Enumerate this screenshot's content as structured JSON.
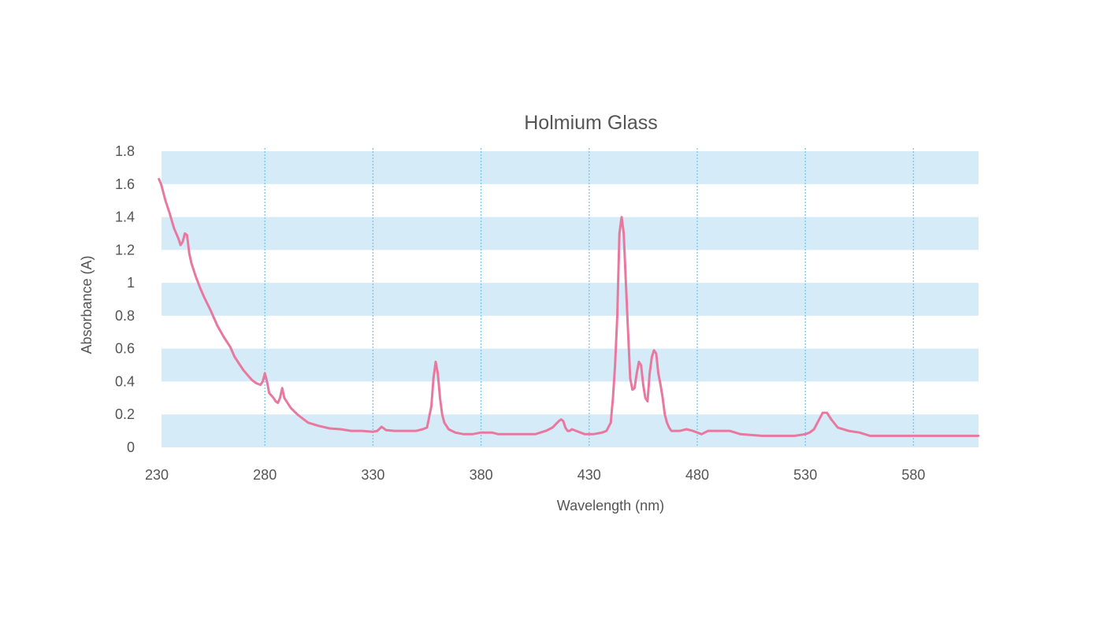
{
  "chart_data": {
    "type": "line",
    "title": "Holmium Glass",
    "xlabel": "Wavelength (nm)",
    "ylabel": "Absorbance (A)",
    "xlim": [
      230,
      610
    ],
    "ylim": [
      0,
      1.8
    ],
    "x_ticks": [
      "230",
      "280",
      "330",
      "380",
      "430",
      "480",
      "530",
      "580"
    ],
    "y_ticks": [
      "0",
      "0.2",
      "0.4",
      "0.6",
      "0.8",
      "1",
      "1.2",
      "1.4",
      "1.6",
      "1.8"
    ],
    "grid": {
      "horizontal_bands": true,
      "vertical_lines": "dotted"
    },
    "legend": "none",
    "colors": {
      "line": "#e9789e",
      "band": "#d5ebf8",
      "vgrid": "#7cc4ec",
      "text": "#555555"
    },
    "series": [
      {
        "x": [
          231,
          232,
          234,
          236,
          238,
          240,
          241,
          242,
          243,
          244,
          245,
          246,
          248,
          250,
          252,
          255,
          258,
          261,
          264,
          266,
          268,
          270,
          272,
          274,
          276,
          278,
          279,
          280,
          281,
          282,
          284,
          285,
          286,
          287,
          288,
          289,
          290,
          292,
          295,
          300,
          305,
          310,
          315,
          320,
          325,
          330,
          332,
          334,
          336,
          340,
          345,
          350,
          353,
          355,
          357,
          358,
          359,
          360,
          361,
          362,
          363,
          365,
          368,
          372,
          376,
          380,
          382,
          385,
          388,
          390,
          395,
          400,
          405,
          410,
          413,
          416,
          417,
          418,
          419,
          420,
          421,
          422,
          424,
          428,
          432,
          436,
          438,
          440,
          441,
          442,
          443,
          444,
          445,
          446,
          447,
          448,
          449,
          450,
          451,
          452,
          453,
          454,
          455,
          456,
          457,
          458,
          459,
          460,
          461,
          462,
          463,
          464,
          465,
          466,
          467,
          468,
          470,
          472,
          475,
          478,
          480,
          482,
          485,
          490,
          495,
          500,
          510,
          520,
          525,
          530,
          532,
          534,
          536,
          538,
          540,
          542,
          545,
          550,
          555,
          560,
          570,
          580,
          590,
          600,
          610
        ],
        "y": [
          1.63,
          1.6,
          1.5,
          1.42,
          1.33,
          1.27,
          1.23,
          1.25,
          1.3,
          1.29,
          1.18,
          1.12,
          1.04,
          0.97,
          0.91,
          0.83,
          0.74,
          0.67,
          0.61,
          0.55,
          0.51,
          0.47,
          0.44,
          0.41,
          0.39,
          0.38,
          0.4,
          0.45,
          0.4,
          0.33,
          0.3,
          0.28,
          0.27,
          0.3,
          0.36,
          0.3,
          0.28,
          0.24,
          0.2,
          0.15,
          0.13,
          0.115,
          0.11,
          0.1,
          0.1,
          0.095,
          0.1,
          0.125,
          0.105,
          0.1,
          0.1,
          0.1,
          0.11,
          0.12,
          0.25,
          0.42,
          0.52,
          0.45,
          0.3,
          0.2,
          0.15,
          0.11,
          0.09,
          0.08,
          0.08,
          0.09,
          0.09,
          0.09,
          0.08,
          0.08,
          0.08,
          0.08,
          0.08,
          0.1,
          0.12,
          0.16,
          0.17,
          0.16,
          0.12,
          0.1,
          0.1,
          0.11,
          0.1,
          0.08,
          0.08,
          0.09,
          0.1,
          0.15,
          0.3,
          0.5,
          0.8,
          1.3,
          1.4,
          1.3,
          1.0,
          0.7,
          0.42,
          0.35,
          0.36,
          0.45,
          0.52,
          0.5,
          0.38,
          0.3,
          0.28,
          0.45,
          0.55,
          0.59,
          0.57,
          0.45,
          0.38,
          0.3,
          0.2,
          0.15,
          0.12,
          0.1,
          0.1,
          0.1,
          0.11,
          0.1,
          0.09,
          0.08,
          0.1,
          0.1,
          0.1,
          0.08,
          0.07,
          0.07,
          0.07,
          0.08,
          0.09,
          0.11,
          0.16,
          0.21,
          0.21,
          0.17,
          0.12,
          0.1,
          0.09,
          0.07,
          0.07,
          0.07,
          0.07,
          0.07,
          0.07
        ]
      }
    ]
  }
}
